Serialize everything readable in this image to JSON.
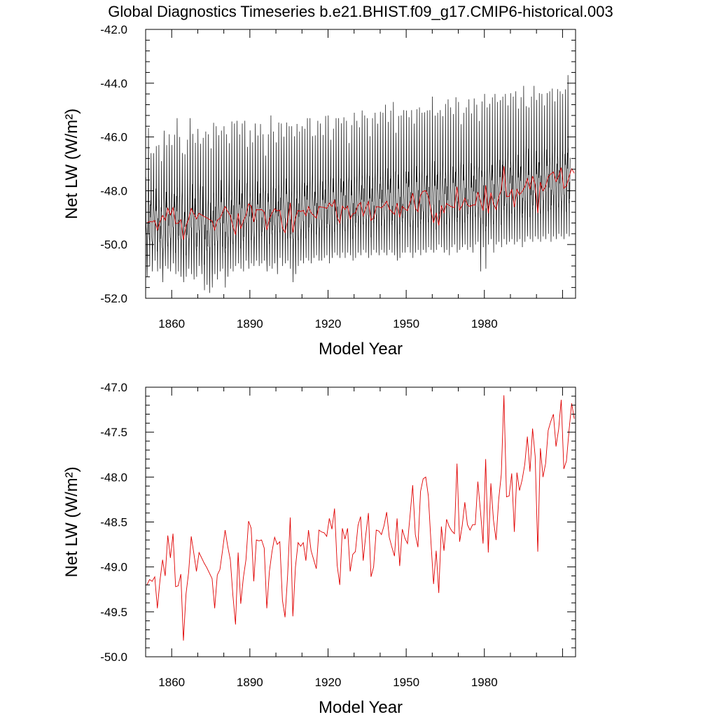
{
  "figure": {
    "title": "Global Diagnostics Timeseries b.e21.BHIST.f09_g17.CMIP6-historical.003"
  },
  "colors": {
    "monthly": "#000000",
    "annual": "#e00000",
    "axes": "#000000"
  },
  "chart_data": [
    {
      "type": "line",
      "xlabel": "Model Year",
      "ylabel": "Net LW (W/m²)",
      "xlim": [
        1850,
        2015
      ],
      "ylim": [
        -52.0,
        -42.0
      ],
      "x_ticks": [
        "1860",
        "1890",
        "1920",
        "1950",
        "1980"
      ],
      "y_ticks": [
        "-42.0",
        "-44.0",
        "-46.0",
        "-48.0",
        "-50.0",
        "-52.0"
      ],
      "series": [
        {
          "frequency": "monthly",
          "color": "#000000",
          "x_start": 1850,
          "x_end": 2015,
          "values_per_year": 12,
          "annual_peak": [
            -47.2,
            -45.6,
            -46.6,
            -46.1,
            -46.1,
            -46.3,
            -46.9,
            -45.3,
            -46.2,
            -45.9,
            -46.3,
            -45.6,
            -45.3,
            -46.0,
            -46.1,
            -46.5,
            -46.1,
            -45.3,
            -45.5,
            -46.2,
            -45.7,
            -45.7,
            -45.8,
            -45.8,
            -45.9,
            -46.0,
            -45.4,
            -45.6,
            -45.3,
            -45.5,
            -45.6,
            -45.9,
            -45.8,
            -45.3,
            -45.5,
            -45.4,
            -45.6,
            -45.5,
            -45.4,
            -45.9,
            -45.6,
            -46.2,
            -45.5,
            -45.6,
            -45.5,
            -45.9,
            -46.2,
            -45.7,
            -45.2,
            -45.8,
            -45.8,
            -45.4,
            -45.5,
            -45.4,
            -45.2,
            -45.6,
            -45.6,
            -45.5,
            -45.4,
            -45.8,
            -45.6,
            -45.4,
            -45.3,
            -45.3,
            -45.5,
            -45.8,
            -45.4,
            -45.5,
            -45.6,
            -45.2,
            -45.2,
            -45.6,
            -45.5,
            -45.3,
            -45.3,
            -45.1,
            -45.2,
            -45.4,
            -45.7,
            -45.3,
            -45.1,
            -45.4,
            -45.2,
            -44.9,
            -45.2,
            -45.3,
            -45.7,
            -45.3,
            -45.1,
            -45.0,
            -44.9,
            -45.1,
            -44.8,
            -45.1,
            -45.0,
            -44.7,
            -45.3,
            -45.0,
            -45.2,
            -45.0,
            -44.6,
            -45.2,
            -45.0,
            -44.9,
            -44.7,
            -44.9,
            -45.1,
            -44.6,
            -44.9,
            -45.0,
            -44.5,
            -44.9,
            -45.1,
            -45.0,
            -44.7,
            -44.6,
            -44.6,
            -44.9,
            -44.8,
            -44.5,
            -44.7,
            -45.0,
            -44.9,
            -44.9,
            -44.6,
            -44.7,
            -44.5,
            -44.8,
            -44.7,
            -44.4,
            -44.4,
            -44.9,
            -44.3,
            -44.4,
            -44.4,
            -44.7,
            -44.3,
            -44.5,
            -44.4,
            -44.3,
            -44.2,
            -44.5,
            -44.3,
            -44.6,
            -44.5,
            -44.1,
            -44.3,
            -44.7,
            -44.5,
            -44.1,
            -44.2,
            -44.3,
            -44.4,
            -44.2,
            -44.1,
            -44.3,
            -44.2,
            -44.2,
            -44.1,
            -44.3,
            -44.4,
            -43.9,
            -43.7
          ],
          "annual_trough": [
            -51.2,
            -50.8,
            -51.0,
            -50.6,
            -51.0,
            -50.9,
            -51.4,
            -50.8,
            -50.9,
            -51.0,
            -50.7,
            -51.1,
            -51.0,
            -51.2,
            -51.4,
            -51.2,
            -50.9,
            -51.1,
            -51.3,
            -51.2,
            -50.8,
            -51.1,
            -51.7,
            -51.5,
            -51.8,
            -51.6,
            -51.1,
            -51.3,
            -51.0,
            -50.9,
            -51.6,
            -51.2,
            -50.9,
            -51.0,
            -50.8,
            -50.7,
            -50.9,
            -51.0,
            -50.6,
            -50.9,
            -50.7,
            -50.8,
            -50.6,
            -50.8,
            -50.7,
            -50.6,
            -51.0,
            -50.8,
            -50.9,
            -50.7,
            -51.1,
            -50.5,
            -50.8,
            -50.7,
            -50.6,
            -50.9,
            -51.4,
            -51.1,
            -50.8,
            -50.6,
            -50.7,
            -50.5,
            -50.6,
            -50.7,
            -50.5,
            -50.4,
            -50.6,
            -50.6,
            -50.5,
            -50.4,
            -50.7,
            -50.5,
            -50.3,
            -50.4,
            -50.5,
            -50.3,
            -50.5,
            -50.3,
            -50.4,
            -50.6,
            -50.5,
            -50.3,
            -50.4,
            -50.2,
            -50.3,
            -50.5,
            -50.4,
            -50.2,
            -50.3,
            -50.4,
            -50.2,
            -50.3,
            -50.4,
            -50.2,
            -50.3,
            -50.4,
            -50.6,
            -50.5,
            -50.3,
            -50.3,
            -50.1,
            -50.3,
            -50.5,
            -50.3,
            -50.2,
            -50.4,
            -50.2,
            -50.3,
            -50.1,
            -50.2,
            -50.3,
            -50.2,
            -50.0,
            -50.1,
            -50.3,
            -50.2,
            -50.4,
            -50.1,
            -50.0,
            -50.3,
            -50.2,
            -50.1,
            -50.0,
            -50.2,
            -50.1,
            -50.3,
            -50.0,
            -49.9,
            -51.0,
            -50.1,
            -50.9,
            -50.0,
            -49.8,
            -50.3,
            -50.0,
            -49.9,
            -50.1,
            -49.8,
            -50.0,
            -49.9,
            -49.8,
            -50.0,
            -49.9,
            -49.8,
            -50.1,
            -49.9,
            -49.7,
            -49.8,
            -49.9,
            -49.7,
            -49.8,
            -49.9,
            -49.7,
            -49.8,
            -49.6,
            -49.9,
            -49.7,
            -49.8,
            -49.6,
            -49.7,
            -49.8,
            -49.6,
            -49.7,
            -49.8,
            -49.6
          ]
        },
        {
          "frequency": "annual",
          "color": "#e00000",
          "x_start": 1850,
          "values": [
            -49.2,
            -49.14,
            -49.16,
            -49.11,
            -49.46,
            -49.15,
            -48.92,
            -49.1,
            -48.65,
            -48.9,
            -48.63,
            -49.22,
            -49.21,
            -49.08,
            -49.82,
            -49.3,
            -49.06,
            -48.66,
            -48.85,
            -49.05,
            -48.84,
            -48.9,
            -48.96,
            -49.01,
            -49.07,
            -49.13,
            -49.46,
            -49.09,
            -49.03,
            -48.82,
            -48.59,
            -48.77,
            -48.92,
            -49.32,
            -49.64,
            -48.84,
            -49.41,
            -49.12,
            -48.92,
            -48.49,
            -48.57,
            -49.16,
            -48.7,
            -48.71,
            -48.7,
            -48.79,
            -49.46,
            -49.05,
            -48.83,
            -48.67,
            -48.75,
            -48.72,
            -49.37,
            -49.56,
            -49.09,
            -48.45,
            -49.55,
            -49.0,
            -48.73,
            -48.77,
            -48.73,
            -48.93,
            -48.59,
            -48.82,
            -48.92,
            -49.02,
            -48.59,
            -48.61,
            -48.62,
            -48.66,
            -48.46,
            -48.58,
            -48.35,
            -48.98,
            -49.2,
            -48.57,
            -48.69,
            -48.57,
            -49.05,
            -48.86,
            -48.83,
            -48.54,
            -48.44,
            -48.93,
            -48.64,
            -48.4,
            -49.11,
            -49.0,
            -48.59,
            -48.6,
            -48.64,
            -48.54,
            -48.39,
            -48.67,
            -48.78,
            -48.88,
            -48.46,
            -48.99,
            -48.58,
            -48.68,
            -48.74,
            -48.42,
            -48.09,
            -48.64,
            -48.78,
            -48.16,
            -48.02,
            -48.0,
            -48.21,
            -48.72,
            -49.19,
            -48.82,
            -49.29,
            -48.55,
            -48.82,
            -48.47,
            -48.55,
            -48.6,
            -48.63,
            -47.85,
            -48.72,
            -48.54,
            -48.28,
            -48.53,
            -48.59,
            -48.53,
            -48.53,
            -48.05,
            -48.38,
            -48.74,
            -47.8,
            -48.84,
            -48.07,
            -48.48,
            -48.7,
            -48.25,
            -47.97,
            -47.09,
            -48.22,
            -48.21,
            -47.96,
            -48.61,
            -47.95,
            -48.15,
            -48.03,
            -47.86,
            -47.55,
            -47.94,
            -47.46,
            -47.77,
            -48.83,
            -47.68,
            -48.0,
            -47.85,
            -47.48,
            -47.38,
            -47.3,
            -47.66,
            -47.47,
            -47.14,
            -47.91,
            -47.82,
            -47.48,
            -47.18,
            -47.35,
            -47.53,
            -47.63
          ]
        }
      ]
    },
    {
      "type": "line",
      "xlabel": "Model Year",
      "ylabel": "Net LW (W/m²)",
      "xlim": [
        1850,
        2015
      ],
      "ylim": [
        -50.0,
        -47.0
      ],
      "x_ticks": [
        "1860",
        "1890",
        "1920",
        "1950",
        "1980"
      ],
      "y_ticks": [
        "-47.0",
        "-47.5",
        "-48.0",
        "-48.5",
        "-49.0",
        "-49.5",
        "-50.0"
      ],
      "series": [
        {
          "frequency": "annual",
          "color": "#e00000",
          "x_start": 1850,
          "values": [
            -49.2,
            -49.14,
            -49.16,
            -49.11,
            -49.46,
            -49.15,
            -48.92,
            -49.1,
            -48.65,
            -48.9,
            -48.63,
            -49.22,
            -49.21,
            -49.08,
            -49.82,
            -49.3,
            -49.06,
            -48.66,
            -48.85,
            -49.05,
            -48.84,
            -48.9,
            -48.96,
            -49.01,
            -49.07,
            -49.13,
            -49.46,
            -49.09,
            -49.03,
            -48.82,
            -48.59,
            -48.77,
            -48.92,
            -49.32,
            -49.64,
            -48.84,
            -49.41,
            -49.12,
            -48.92,
            -48.49,
            -48.57,
            -49.16,
            -48.7,
            -48.71,
            -48.7,
            -48.79,
            -49.46,
            -49.05,
            -48.83,
            -48.67,
            -48.75,
            -48.72,
            -49.37,
            -49.56,
            -49.09,
            -48.45,
            -49.55,
            -49.0,
            -48.73,
            -48.77,
            -48.73,
            -48.93,
            -48.59,
            -48.82,
            -48.92,
            -49.02,
            -48.59,
            -48.61,
            -48.62,
            -48.66,
            -48.46,
            -48.58,
            -48.35,
            -48.98,
            -49.2,
            -48.57,
            -48.69,
            -48.57,
            -49.05,
            -48.86,
            -48.83,
            -48.54,
            -48.44,
            -48.93,
            -48.64,
            -48.4,
            -49.11,
            -49.0,
            -48.59,
            -48.6,
            -48.64,
            -48.54,
            -48.39,
            -48.67,
            -48.78,
            -48.88,
            -48.46,
            -48.99,
            -48.58,
            -48.68,
            -48.74,
            -48.42,
            -48.09,
            -48.64,
            -48.78,
            -48.16,
            -48.02,
            -48.0,
            -48.21,
            -48.72,
            -49.19,
            -48.82,
            -49.29,
            -48.55,
            -48.82,
            -48.47,
            -48.55,
            -48.6,
            -48.63,
            -47.85,
            -48.72,
            -48.54,
            -48.28,
            -48.53,
            -48.59,
            -48.53,
            -48.53,
            -48.05,
            -48.38,
            -48.74,
            -47.8,
            -48.84,
            -48.07,
            -48.48,
            -48.7,
            -48.25,
            -47.97,
            -47.09,
            -48.22,
            -48.21,
            -47.96,
            -48.61,
            -47.95,
            -48.15,
            -48.03,
            -47.86,
            -47.55,
            -47.94,
            -47.46,
            -47.77,
            -48.83,
            -47.68,
            -48.0,
            -47.85,
            -47.48,
            -47.38,
            -47.3,
            -47.66,
            -47.47,
            -47.14,
            -47.91,
            -47.82,
            -47.48,
            -47.18,
            -47.35,
            -47.53,
            -47.63
          ]
        }
      ]
    }
  ]
}
